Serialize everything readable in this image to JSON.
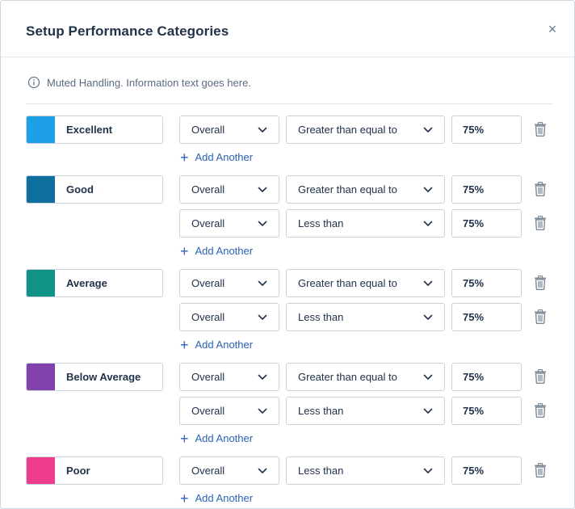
{
  "modal": {
    "title": "Setup Performance Categories",
    "close_glyph": "×",
    "info_text": "Muted Handling. Information text goes here."
  },
  "add_another_label": "Add Another",
  "categories": [
    {
      "name": "Excellent",
      "color": "#1ea0e6",
      "rules": [
        {
          "metric": "Overall",
          "operator": "Greater than equal to",
          "value": "75%"
        }
      ]
    },
    {
      "name": "Good",
      "color": "#0f6f9e",
      "rules": [
        {
          "metric": "Overall",
          "operator": "Greater than equal to",
          "value": "75%"
        },
        {
          "metric": "Overall",
          "operator": "Less than",
          "value": "75%"
        }
      ]
    },
    {
      "name": "Average",
      "color": "#129387",
      "rules": [
        {
          "metric": "Overall",
          "operator": "Greater than equal to",
          "value": "75%"
        },
        {
          "metric": "Overall",
          "operator": "Less than",
          "value": "75%"
        }
      ]
    },
    {
      "name": "Below Average",
      "color": "#8142ad",
      "rules": [
        {
          "metric": "Overall",
          "operator": "Greater than equal to",
          "value": "75%"
        },
        {
          "metric": "Overall",
          "operator": "Less than",
          "value": "75%"
        }
      ]
    },
    {
      "name": "Poor",
      "color": "#ee3d8c",
      "rules": [
        {
          "metric": "Overall",
          "operator": "Less than",
          "value": "75%"
        }
      ]
    }
  ]
}
